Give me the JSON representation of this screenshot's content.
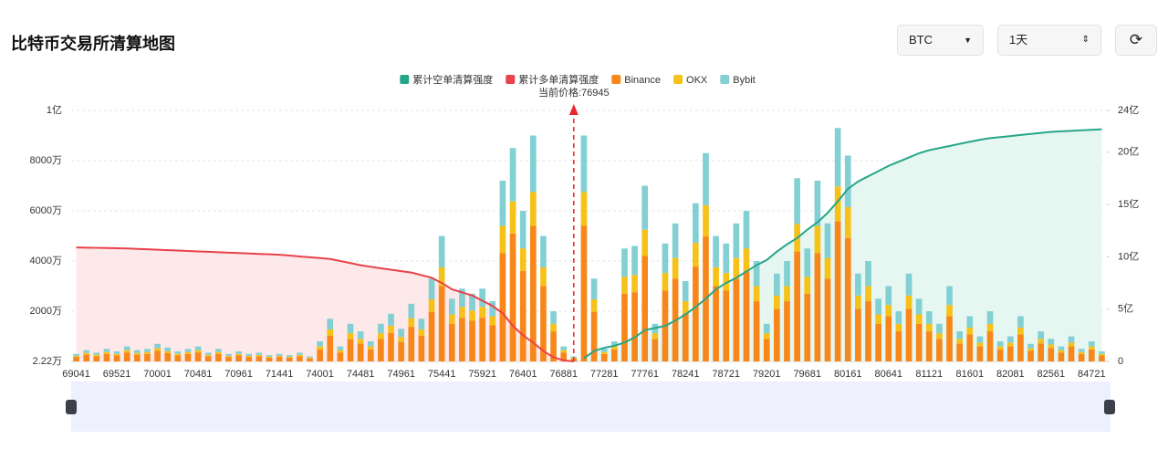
{
  "header": {
    "title": "比特币交易所清算地图",
    "symbol": "BTC",
    "period": "1天"
  },
  "chart_data": {
    "type": "bar",
    "stacked": true,
    "grid": true,
    "legend": "top",
    "annotation": "当前价格:76945",
    "watermark": "coinglass",
    "categories": [
      "69041",
      null,
      null,
      null,
      "69521",
      null,
      null,
      null,
      "70001",
      null,
      null,
      null,
      "70481",
      null,
      null,
      null,
      "70961",
      null,
      null,
      null,
      "71441",
      null,
      null,
      null,
      "74001",
      null,
      null,
      null,
      "74481",
      null,
      null,
      null,
      "74961",
      null,
      null,
      null,
      "75441",
      null,
      null,
      null,
      "75921",
      null,
      null,
      null,
      "76401",
      null,
      null,
      null,
      "76881",
      null,
      null,
      null,
      "77281",
      null,
      null,
      null,
      "77761",
      null,
      null,
      null,
      "78241",
      null,
      null,
      null,
      "78721",
      null,
      null,
      null,
      "79201",
      null,
      null,
      null,
      "79681",
      null,
      null,
      null,
      "80161",
      null,
      null,
      null,
      "80641",
      null,
      null,
      null,
      "81121",
      null,
      null,
      null,
      "81601",
      null,
      null,
      null,
      "82081",
      null,
      null,
      null,
      "82561",
      null,
      null,
      null,
      "84721",
      null
    ],
    "series": [
      {
        "name": "累计空单清算强度",
        "type": "line",
        "axis": "y2",
        "color": "#26a688",
        "area": "#e6f6f1",
        "values": [
          null,
          null,
          null,
          null,
          null,
          null,
          null,
          null,
          null,
          null,
          null,
          null,
          null,
          null,
          null,
          null,
          null,
          null,
          null,
          null,
          null,
          null,
          null,
          null,
          null,
          null,
          null,
          null,
          null,
          null,
          null,
          null,
          null,
          null,
          null,
          null,
          null,
          null,
          null,
          null,
          null,
          null,
          null,
          null,
          null,
          null,
          null,
          null,
          null,
          null,
          0.3,
          1.0,
          1.3,
          1.5,
          1.8,
          2.3,
          3.0,
          3.2,
          3.4,
          3.9,
          4.5,
          5.2,
          6.0,
          6.9,
          7.5,
          8.0,
          8.6,
          9.2,
          9.7,
          10.5,
          11.2,
          11.8,
          12.6,
          13.3,
          14.2,
          15.3,
          16.5,
          17.2,
          17.7,
          18.2,
          18.7,
          19.1,
          19.5,
          19.9,
          20.2,
          20.4,
          20.6,
          20.8,
          21.0,
          21.2,
          21.35,
          21.45,
          21.55,
          21.65,
          21.75,
          21.85,
          21.95,
          22.0,
          22.05,
          22.1,
          22.15,
          22.2
        ]
      },
      {
        "name": "累计多单清算强度",
        "type": "line",
        "axis": "y2",
        "color": "#e8424a",
        "area": "#fde8ea",
        "values": [
          10.9,
          10.88,
          10.86,
          10.84,
          10.82,
          10.8,
          10.76,
          10.72,
          10.68,
          10.64,
          10.6,
          10.56,
          10.52,
          10.48,
          10.44,
          10.4,
          10.36,
          10.32,
          10.28,
          10.24,
          10.2,
          10.12,
          10.04,
          9.96,
          9.88,
          9.8,
          9.6,
          9.4,
          9.2,
          9.05,
          8.9,
          8.77,
          8.63,
          8.5,
          8.25,
          8.0,
          7.5,
          6.9,
          6.6,
          6.3,
          5.8,
          5.3,
          4.6,
          3.4,
          2.5,
          1.8,
          1.0,
          0.4,
          0.1,
          0,
          null,
          null,
          null,
          null,
          null,
          null,
          null,
          null,
          null,
          null,
          null,
          null,
          null,
          null,
          null,
          null,
          null,
          null,
          null,
          null,
          null,
          null,
          null,
          null,
          null,
          null,
          null,
          null,
          null,
          null,
          null,
          null,
          null,
          null,
          null,
          null,
          null,
          null,
          null,
          null,
          null,
          null,
          null,
          null,
          null,
          null,
          null,
          null,
          null,
          null,
          null,
          null
        ]
      },
      {
        "name": "Binance",
        "type": "bar",
        "color": "#f7871a",
        "values": [
          180,
          270,
          210,
          300,
          240,
          360,
          270,
          300,
          420,
          330,
          240,
          300,
          360,
          210,
          300,
          180,
          240,
          180,
          210,
          150,
          180,
          150,
          210,
          120,
          480,
          1020,
          360,
          900,
          720,
          480,
          900,
          1140,
          780,
          1380,
          1020,
          1980,
          3000,
          1500,
          1740,
          1620,
          1740,
          1440,
          4320,
          5100,
          3600,
          5400,
          3000,
          1200,
          360,
          120,
          5400,
          1980,
          300,
          480,
          2700,
          2760,
          4200,
          900,
          2820,
          3300,
          1920,
          3780,
          4980,
          3000,
          2820,
          3300,
          3600,
          2400,
          900,
          2100,
          2400,
          4380,
          2700,
          4320,
          3300,
          5580,
          4920,
          2100,
          2400,
          1500,
          1800,
          1200,
          2100,
          1500,
          1200,
          900,
          1800,
          720,
          1080,
          600,
          1200,
          480,
          600,
          1080,
          420,
          720,
          540,
          360,
          600,
          300,
          480,
          240
        ]
      },
      {
        "name": "OKX",
        "type": "bar",
        "color": "#f6c21a",
        "values": [
          45,
          68,
          53,
          75,
          60,
          90,
          68,
          75,
          105,
          83,
          60,
          75,
          90,
          53,
          75,
          45,
          60,
          45,
          53,
          38,
          45,
          38,
          53,
          30,
          120,
          255,
          90,
          225,
          180,
          120,
          225,
          285,
          195,
          345,
          255,
          495,
          750,
          375,
          435,
          405,
          435,
          360,
          1080,
          1275,
          900,
          1350,
          750,
          300,
          90,
          30,
          1350,
          495,
          75,
          120,
          675,
          690,
          1050,
          225,
          705,
          825,
          480,
          945,
          1245,
          750,
          705,
          825,
          900,
          600,
          225,
          525,
          600,
          1095,
          675,
          1080,
          825,
          1395,
          1230,
          525,
          600,
          375,
          450,
          300,
          525,
          375,
          300,
          225,
          450,
          180,
          270,
          150,
          300,
          120,
          150,
          270,
          105,
          180,
          135,
          90,
          150,
          75,
          120,
          60
        ]
      },
      {
        "name": "Bybit",
        "type": "bar",
        "color": "#82d0d4",
        "values": [
          75,
          112,
          87,
          125,
          100,
          150,
          112,
          125,
          175,
          137,
          100,
          125,
          150,
          87,
          125,
          75,
          100,
          75,
          87,
          62,
          75,
          62,
          87,
          50,
          200,
          425,
          150,
          375,
          300,
          200,
          375,
          475,
          325,
          575,
          425,
          825,
          1250,
          625,
          725,
          675,
          725,
          600,
          1800,
          2125,
          1500,
          2250,
          1250,
          500,
          150,
          50,
          2250,
          825,
          125,
          200,
          1125,
          1150,
          1750,
          375,
          1175,
          1375,
          800,
          1575,
          2075,
          1250,
          1175,
          1375,
          1500,
          1000,
          375,
          875,
          1000,
          1825,
          1125,
          1800,
          1375,
          2325,
          2050,
          875,
          1000,
          625,
          750,
          500,
          875,
          625,
          500,
          375,
          750,
          300,
          450,
          250,
          500,
          200,
          250,
          450,
          175,
          300,
          225,
          150,
          250,
          125,
          200,
          100
        ]
      }
    ],
    "ylim": [
      2.22,
      10000
    ],
    "yticks": [
      {
        "value": 2.22,
        "label": "2.22万"
      },
      {
        "value": 2000,
        "label": "2000万"
      },
      {
        "value": 4000,
        "label": "4000万"
      },
      {
        "value": 6000,
        "label": "6000万"
      },
      {
        "value": 8000,
        "label": "8000万"
      },
      {
        "value": 10000,
        "label": "1亿"
      }
    ],
    "y2lim": [
      0,
      24
    ],
    "y2ticks": [
      0,
      {
        "value": 5,
        "label": "5亿"
      },
      {
        "value": 10,
        "label": "10亿"
      },
      {
        "value": 15,
        "label": "15亿"
      },
      {
        "value": 20,
        "label": "20亿"
      },
      {
        "value": 24,
        "label": "24亿"
      }
    ]
  }
}
